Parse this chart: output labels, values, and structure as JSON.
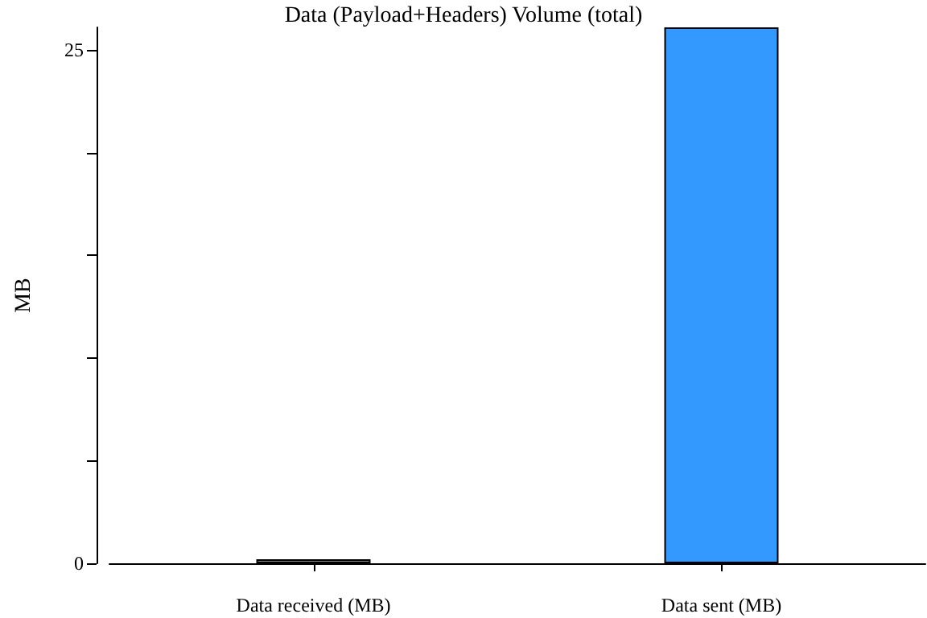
{
  "chart_data": {
    "type": "bar",
    "title": "Data (Payload+Headers) Volume (total)",
    "ylabel": "MB",
    "categories": [
      "Data received (MB)",
      "Data sent (MB)"
    ],
    "values": [
      0.2,
      26.1
    ],
    "color": "#3399ff",
    "ylim": [
      0,
      26.1
    ],
    "yticks": [
      0,
      {
        "value": 5,
        "label": null
      },
      {
        "value": 10,
        "label": null
      },
      {
        "value": 15,
        "label": null
      },
      {
        "value": 20,
        "label": null
      },
      25
    ],
    "grid": false
  }
}
